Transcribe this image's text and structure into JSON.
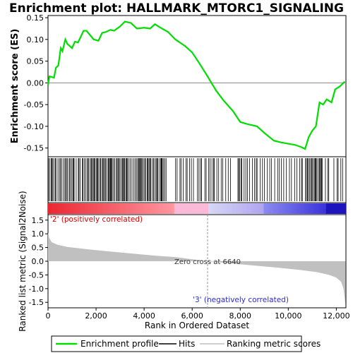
{
  "title": "Enrichment plot: HALLMARK_MTORC1_SIGNALING",
  "colors": {
    "es_line": "#00dd00",
    "hits": "#000000",
    "metric_fill": "#c0c0c0",
    "pos_label": "#d40000",
    "neg_label": "#2a2ad0",
    "zero_line": "#888888"
  },
  "chart_data": [
    {
      "type": "line",
      "panel": "enrichment",
      "ylabel": "Enrichment score (ES)",
      "xlim": [
        0,
        12400
      ],
      "ylim": [
        -0.17,
        0.155
      ],
      "yticks": [
        0.15,
        0.1,
        0.05,
        0.0,
        -0.05,
        -0.1,
        -0.15
      ],
      "ytick_labels": [
        "0.15",
        "0.10",
        "0.05",
        "0.00",
        "-0.05",
        "-0.10",
        "-0.15"
      ],
      "series": [
        {
          "name": "Enrichment profile",
          "points": [
            [
              0,
              -0.005
            ],
            [
              60,
              0.015
            ],
            [
              250,
              0.012
            ],
            [
              330,
              0.035
            ],
            [
              430,
              0.04
            ],
            [
              530,
              0.08
            ],
            [
              600,
              0.073
            ],
            [
              720,
              0.1
            ],
            [
              800,
              0.09
            ],
            [
              1000,
              0.08
            ],
            [
              1120,
              0.095
            ],
            [
              1250,
              0.093
            ],
            [
              1480,
              0.12
            ],
            [
              1600,
              0.12
            ],
            [
              1900,
              0.1
            ],
            [
              2100,
              0.097
            ],
            [
              2250,
              0.115
            ],
            [
              2400,
              0.117
            ],
            [
              2600,
              0.122
            ],
            [
              2750,
              0.12
            ],
            [
              3000,
              0.13
            ],
            [
              3200,
              0.141
            ],
            [
              3450,
              0.138
            ],
            [
              3700,
              0.125
            ],
            [
              4000,
              0.127
            ],
            [
              4250,
              0.125
            ],
            [
              4450,
              0.135
            ],
            [
              4650,
              0.128
            ],
            [
              5000,
              0.117
            ],
            [
              5300,
              0.1
            ],
            [
              5700,
              0.085
            ],
            [
              6000,
              0.07
            ],
            [
              6300,
              0.045
            ],
            [
              6640,
              0.015
            ],
            [
              7000,
              -0.018
            ],
            [
              7300,
              -0.04
            ],
            [
              7700,
              -0.065
            ],
            [
              8000,
              -0.09
            ],
            [
              8300,
              -0.095
            ],
            [
              8700,
              -0.1
            ],
            [
              9000,
              -0.115
            ],
            [
              9400,
              -0.133
            ],
            [
              9700,
              -0.137
            ],
            [
              10000,
              -0.14
            ],
            [
              10300,
              -0.143
            ],
            [
              10550,
              -0.148
            ],
            [
              10700,
              -0.152
            ],
            [
              10850,
              -0.125
            ],
            [
              11000,
              -0.11
            ],
            [
              11150,
              -0.1
            ],
            [
              11300,
              -0.045
            ],
            [
              11450,
              -0.05
            ],
            [
              11600,
              -0.038
            ],
            [
              11800,
              -0.045
            ],
            [
              11950,
              -0.015
            ],
            [
              12150,
              -0.008
            ],
            [
              12350,
              0.003
            ]
          ]
        }
      ]
    },
    {
      "type": "area",
      "panel": "ranked_metric",
      "xlabel": "Rank in Ordered Dataset",
      "ylabel": "Ranked list metric (Signal2Noise)",
      "xlim": [
        0,
        12400
      ],
      "ylim": [
        -1.7,
        1.7
      ],
      "xticks": [
        0,
        2000,
        4000,
        6000,
        8000,
        10000,
        12000
      ],
      "xtick_labels": [
        "0",
        "2,000",
        "4,000",
        "6,000",
        "8,000",
        "10,000",
        "12,000"
      ],
      "yticks": [
        1.5,
        1.0,
        0.5,
        0.0,
        -0.5,
        -1.0,
        -1.5
      ],
      "ytick_labels": [
        "1.5",
        "1.0",
        "0.5",
        "0.0",
        "-0.5",
        "-1.0",
        "-1.5"
      ],
      "series": [
        {
          "name": "Ranking metric scores",
          "points": [
            [
              0,
              1.05
            ],
            [
              50,
              0.85
            ],
            [
              150,
              0.7
            ],
            [
              400,
              0.6
            ],
            [
              800,
              0.52
            ],
            [
              1500,
              0.45
            ],
            [
              2500,
              0.36
            ],
            [
              3500,
              0.28
            ],
            [
              4500,
              0.2
            ],
            [
              5300,
              0.15
            ],
            [
              6000,
              0.07
            ],
            [
              6640,
              0.0
            ],
            [
              7500,
              -0.07
            ],
            [
              8500,
              -0.15
            ],
            [
              9500,
              -0.23
            ],
            [
              10500,
              -0.32
            ],
            [
              11200,
              -0.4
            ],
            [
              11700,
              -0.5
            ],
            [
              12000,
              -0.6
            ],
            [
              12200,
              -0.75
            ],
            [
              12300,
              -1.0
            ],
            [
              12380,
              -1.6
            ]
          ]
        }
      ],
      "annotations": {
        "positive": "'2' (positively correlated)",
        "zero_cross": "Zero cross at 6640",
        "zero_cross_rank": 6640,
        "negative": "'3' (negatively correlated)"
      }
    }
  ],
  "legend": {
    "items": [
      {
        "label": "Enrichment profile",
        "color": "#00dd00"
      },
      {
        "label": "Hits",
        "color": "#000000"
      },
      {
        "label": "Ranking metric scores",
        "color": "#c0c0c0"
      }
    ]
  }
}
